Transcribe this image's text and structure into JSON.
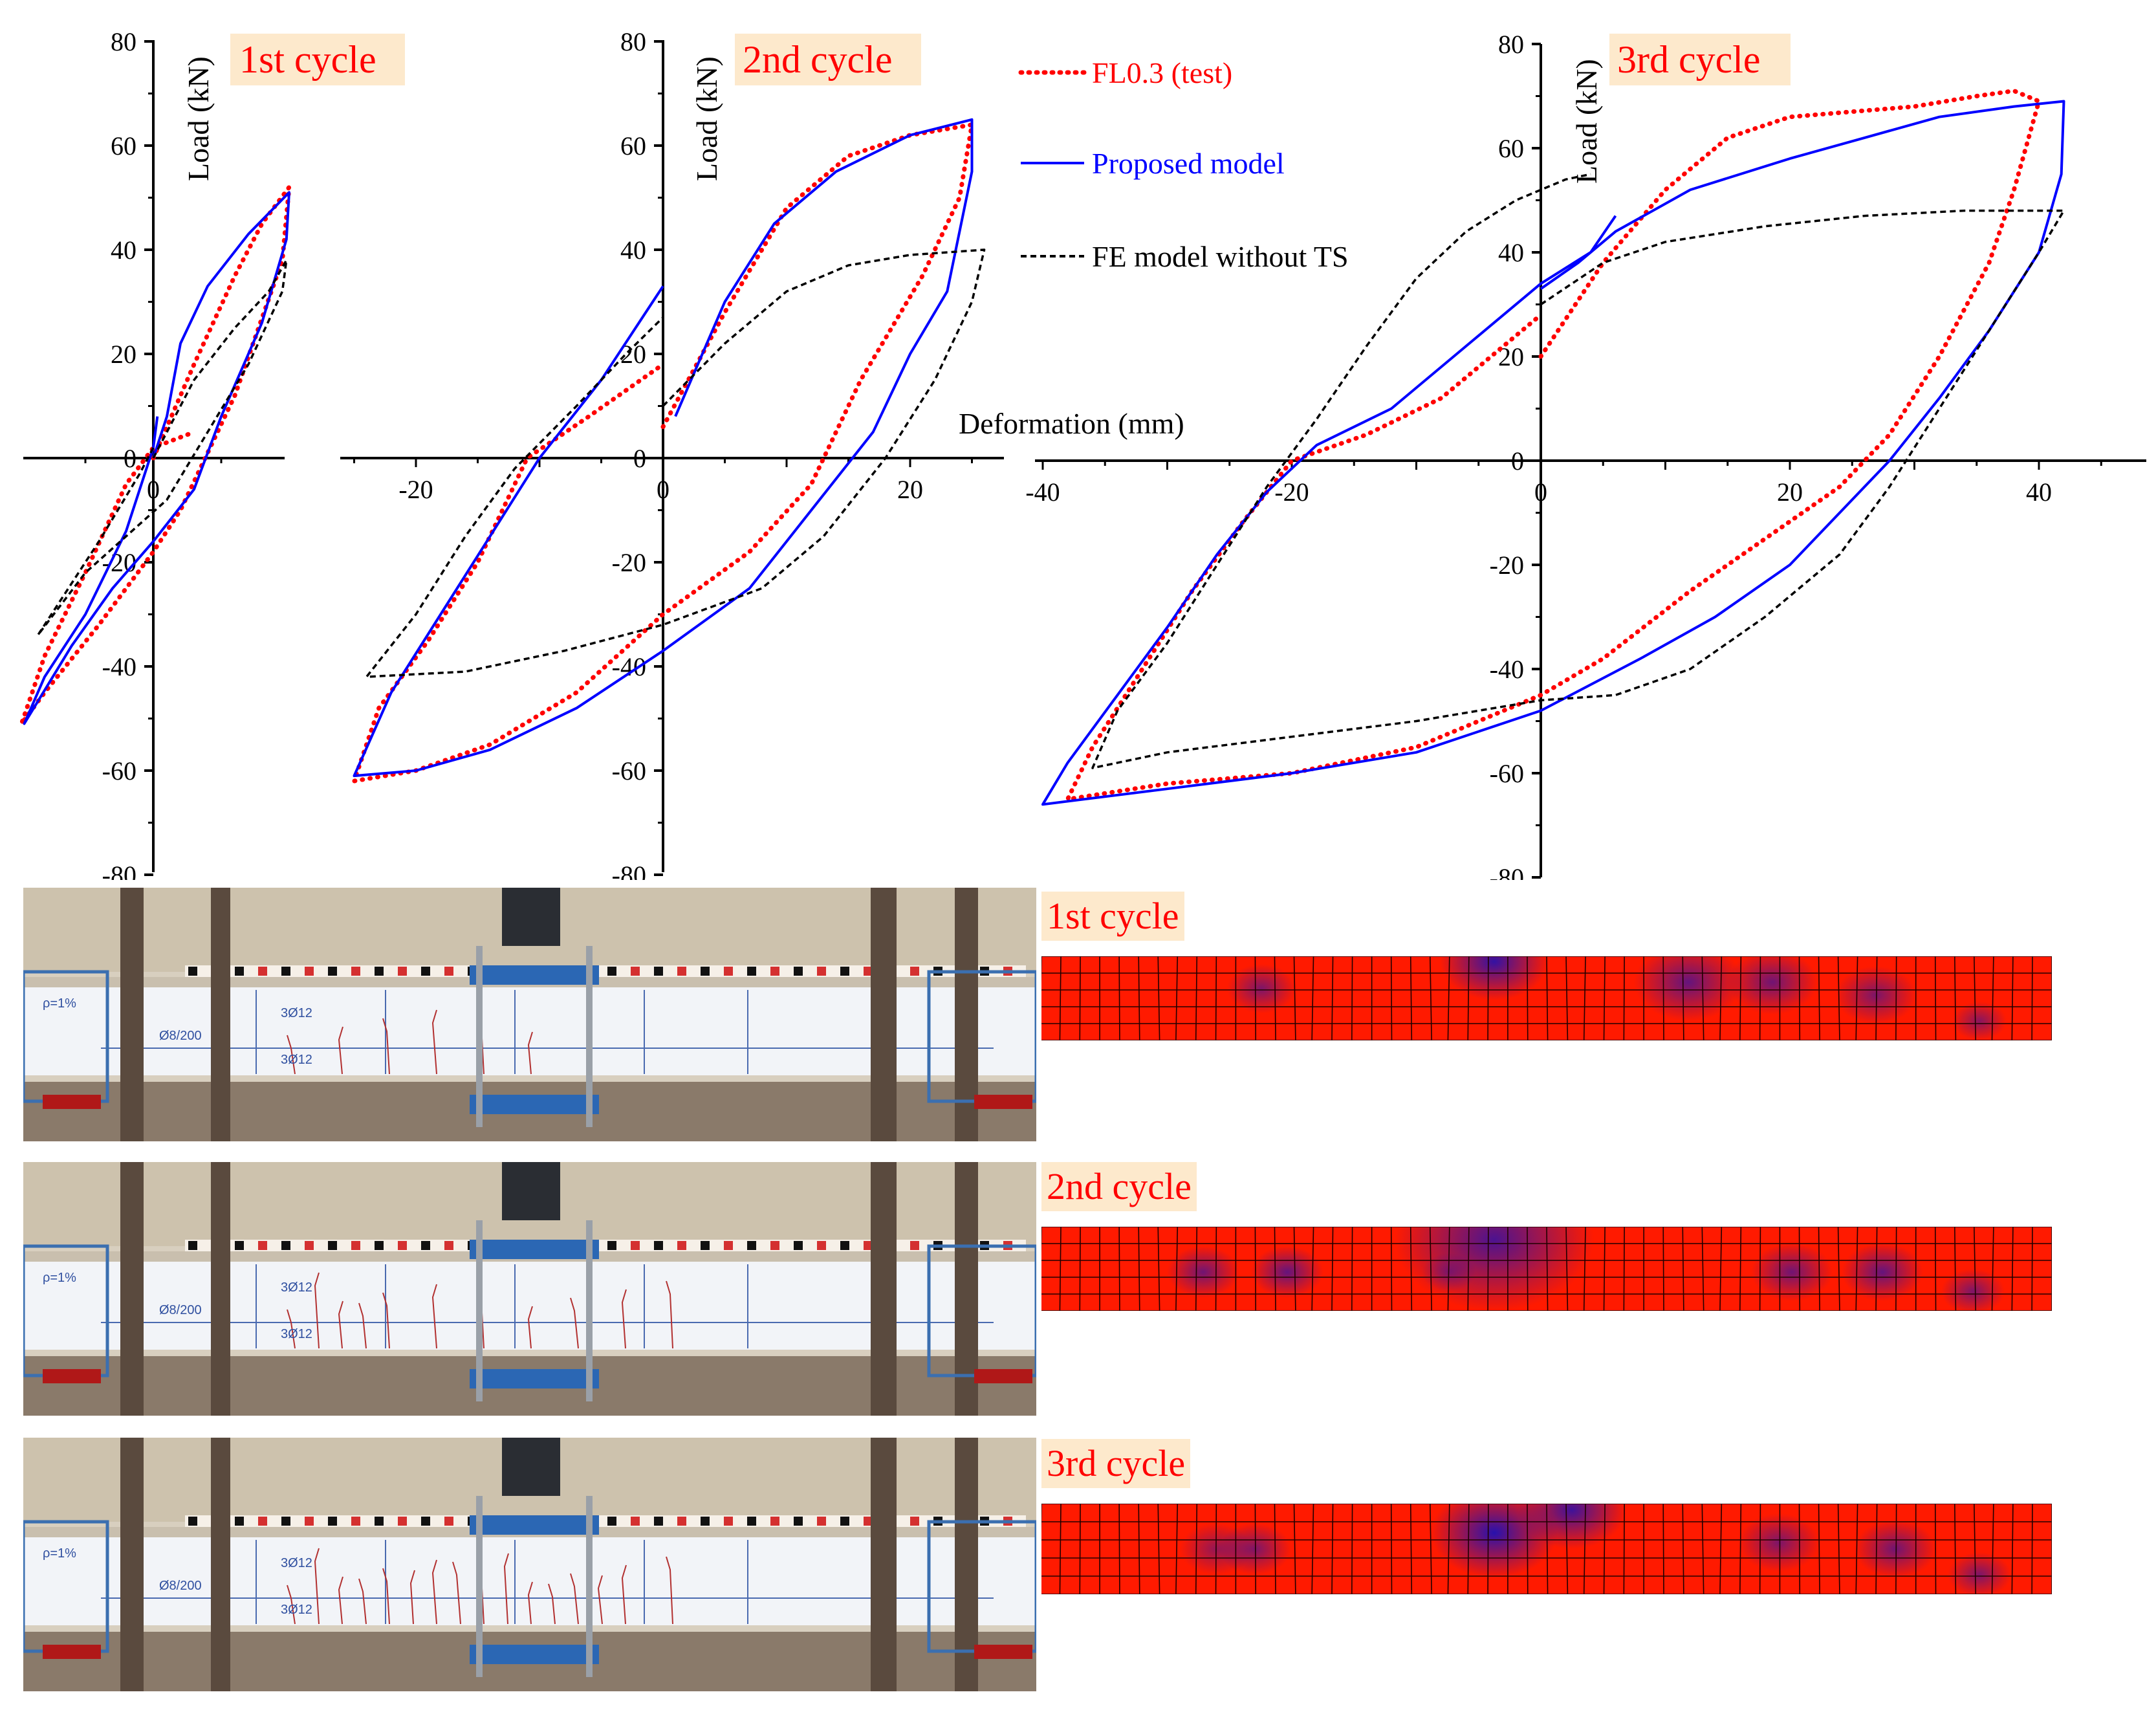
{
  "chart_data": [
    {
      "type": "line",
      "title": "1st cycle",
      "ylabel": "Load (kN)",
      "xlabel": "",
      "xlim": [
        -10.5,
        10.5
      ],
      "ylim": [
        -80,
        80
      ],
      "y_ticks": [
        -80,
        -60,
        -40,
        -20,
        0,
        20,
        40,
        60,
        80
      ],
      "x_ticks": [
        0
      ],
      "series": [
        {
          "name": "FL0.3 (test)",
          "color": "#ff0000",
          "style": "dotted",
          "points": [
            [
              0,
              0
            ],
            [
              3,
              18
            ],
            [
              6,
              35
            ],
            [
              8,
              45
            ],
            [
              10,
              52
            ],
            [
              9.5,
              38
            ],
            [
              6,
              12
            ],
            [
              2,
              -10
            ],
            [
              0,
              -18
            ],
            [
              -4,
              -32
            ],
            [
              -8,
              -45
            ],
            [
              -9.7,
              -51
            ],
            [
              -8,
              -38
            ],
            [
              -5,
              -22
            ],
            [
              -2,
              -5
            ],
            [
              0,
              2
            ],
            [
              3,
              5
            ]
          ]
        },
        {
          "name": "Proposed model",
          "color": "#0000ff",
          "style": "solid",
          "points": [
            [
              0,
              0
            ],
            [
              1,
              8
            ],
            [
              2,
              22
            ],
            [
              4,
              33
            ],
            [
              7,
              43
            ],
            [
              10,
              51
            ],
            [
              9.8,
              42
            ],
            [
              8,
              26
            ],
            [
              5,
              8
            ],
            [
              3,
              -6
            ],
            [
              0,
              -16
            ],
            [
              -3,
              -25
            ],
            [
              -6,
              -36
            ],
            [
              -9.5,
              -51
            ],
            [
              -8,
              -42
            ],
            [
              -5,
              -30
            ],
            [
              -2,
              -14
            ],
            [
              0,
              2
            ],
            [
              0.3,
              8
            ]
          ]
        },
        {
          "name": "FE model without TS",
          "color": "#000000",
          "style": "dashed",
          "points": [
            [
              0,
              0
            ],
            [
              3,
              15
            ],
            [
              6,
              25
            ],
            [
              8.5,
              32
            ],
            [
              9.8,
              38
            ],
            [
              9.5,
              32
            ],
            [
              7,
              18
            ],
            [
              4,
              5
            ],
            [
              1,
              -8
            ],
            [
              -2,
              -15
            ],
            [
              -5,
              -22
            ],
            [
              -8.5,
              -34
            ],
            [
              -7,
              -28
            ],
            [
              -4,
              -16
            ],
            [
              -1,
              -3
            ],
            [
              0,
              2
            ]
          ]
        }
      ]
    },
    {
      "type": "line",
      "title": "2nd cycle",
      "ylabel": "Load (kN)",
      "xlabel": "",
      "xlim": [
        -26,
        27
      ],
      "ylim": [
        -80,
        80
      ],
      "y_ticks": [
        -80,
        -60,
        -40,
        -20,
        0,
        20,
        40,
        60,
        80
      ],
      "x_ticks": [
        -20,
        0,
        20
      ],
      "series": [
        {
          "name": "FL0.3 (test)",
          "color": "#ff0000",
          "style": "dotted",
          "points": [
            [
              0,
              6
            ],
            [
              5,
              28
            ],
            [
              10,
              48
            ],
            [
              15,
              58
            ],
            [
              20,
              62
            ],
            [
              25,
              64
            ],
            [
              24,
              50
            ],
            [
              21,
              35
            ],
            [
              16,
              15
            ],
            [
              12,
              -5
            ],
            [
              7,
              -18
            ],
            [
              0,
              -30
            ],
            [
              -7,
              -45
            ],
            [
              -14,
              -55
            ],
            [
              -20,
              -60
            ],
            [
              -25,
              -62
            ],
            [
              -23,
              -48
            ],
            [
              -19,
              -35
            ],
            [
              -15,
              -20
            ],
            [
              -11,
              0
            ],
            [
              -6,
              8
            ],
            [
              0,
              18
            ]
          ]
        },
        {
          "name": "Proposed model",
          "color": "#0000ff",
          "style": "solid",
          "points": [
            [
              1,
              8
            ],
            [
              5,
              30
            ],
            [
              9,
              45
            ],
            [
              14,
              55
            ],
            [
              20,
              62
            ],
            [
              25,
              65
            ],
            [
              25,
              55
            ],
            [
              23,
              32
            ],
            [
              20,
              20
            ],
            [
              17,
              5
            ],
            [
              12,
              -10
            ],
            [
              7,
              -25
            ],
            [
              0,
              -37
            ],
            [
              -7,
              -48
            ],
            [
              -14,
              -56
            ],
            [
              -20,
              -60
            ],
            [
              -25,
              -61
            ],
            [
              -22,
              -45
            ],
            [
              -18,
              -30
            ],
            [
              -14,
              -15
            ],
            [
              -10,
              0
            ],
            [
              -5,
              15
            ],
            [
              0,
              33
            ]
          ]
        },
        {
          "name": "FE model without TS",
          "color": "#000000",
          "style": "dashed",
          "points": [
            [
              0,
              10
            ],
            [
              5,
              22
            ],
            [
              10,
              32
            ],
            [
              15,
              37
            ],
            [
              20,
              39
            ],
            [
              26,
              40
            ],
            [
              25,
              30
            ],
            [
              22,
              15
            ],
            [
              18,
              0
            ],
            [
              13,
              -15
            ],
            [
              8,
              -25
            ],
            [
              0,
              -32
            ],
            [
              -8,
              -37
            ],
            [
              -16,
              -41
            ],
            [
              -24,
              -42
            ],
            [
              -20,
              -30
            ],
            [
              -16,
              -15
            ],
            [
              -12,
              -2
            ],
            [
              -7,
              10
            ],
            [
              -3,
              20
            ],
            [
              0,
              27
            ]
          ]
        }
      ]
    },
    {
      "type": "line",
      "title": "3rd cycle",
      "ylabel": "Load (kN)",
      "xlabel": "Deformation (mm)",
      "xlim": [
        -40,
        48
      ],
      "ylim": [
        -80,
        80
      ],
      "y_ticks": [
        -80,
        -60,
        -40,
        -20,
        0,
        20,
        40,
        60,
        80
      ],
      "x_ticks": [
        -40,
        -20,
        0,
        20,
        40
      ],
      "series": [
        {
          "name": "FL0.3 (test)",
          "color": "#ff0000",
          "style": "dotted",
          "points": [
            [
              0,
              20
            ],
            [
              5,
              38
            ],
            [
              10,
              52
            ],
            [
              15,
              62
            ],
            [
              20,
              66
            ],
            [
              25,
              67
            ],
            [
              30,
              68
            ],
            [
              35,
              70
            ],
            [
              38,
              71
            ],
            [
              40,
              69
            ],
            [
              38,
              52
            ],
            [
              36,
              38
            ],
            [
              32,
              20
            ],
            [
              28,
              5
            ],
            [
              24,
              -5
            ],
            [
              18,
              -15
            ],
            [
              12,
              -25
            ],
            [
              5,
              -38
            ],
            [
              0,
              -45
            ],
            [
              -10,
              -55
            ],
            [
              -20,
              -60
            ],
            [
              -30,
              -62
            ],
            [
              -38,
              -65
            ],
            [
              -36,
              -55
            ],
            [
              -32,
              -40
            ],
            [
              -28,
              -25
            ],
            [
              -24,
              -12
            ],
            [
              -20,
              0
            ],
            [
              -14,
              5
            ],
            [
              -8,
              12
            ],
            [
              0,
              28
            ]
          ]
        },
        {
          "name": "Proposed model",
          "color": "#0000ff",
          "style": "solid",
          "points": [
            [
              0,
              33
            ],
            [
              3,
              38
            ],
            [
              6,
              44
            ],
            [
              12,
              52
            ],
            [
              20,
              58
            ],
            [
              26,
              62
            ],
            [
              32,
              66
            ],
            [
              38,
              68
            ],
            [
              42,
              69
            ],
            [
              41.8,
              55
            ],
            [
              40,
              40
            ],
            [
              36,
              25
            ],
            [
              32,
              12
            ],
            [
              28,
              0
            ],
            [
              24,
              -10
            ],
            [
              20,
              -20
            ],
            [
              14,
              -30
            ],
            [
              8,
              -38
            ],
            [
              0,
              -48
            ],
            [
              -10,
              -56
            ],
            [
              -20,
              -60
            ],
            [
              -30,
              -63
            ],
            [
              -40,
              -66
            ],
            [
              -38,
              -58
            ],
            [
              -34,
              -45
            ],
            [
              -30,
              -32
            ],
            [
              -26,
              -18
            ],
            [
              -22,
              -6
            ],
            [
              -18,
              3
            ],
            [
              -12,
              10
            ],
            [
              -6,
              22
            ],
            [
              0,
              34
            ],
            [
              4,
              40
            ],
            [
              6,
              47
            ]
          ]
        },
        {
          "name": "FE model without TS",
          "color": "#000000",
          "style": "dashed",
          "points": [
            [
              0,
              30
            ],
            [
              5,
              38
            ],
            [
              10,
              42
            ],
            [
              18,
              45
            ],
            [
              26,
              47
            ],
            [
              34,
              48
            ],
            [
              42,
              48
            ],
            [
              40,
              40
            ],
            [
              36,
              25
            ],
            [
              32,
              10
            ],
            [
              28,
              -5
            ],
            [
              24,
              -18
            ],
            [
              18,
              -30
            ],
            [
              12,
              -40
            ],
            [
              6,
              -45
            ],
            [
              0,
              -46
            ],
            [
              -10,
              -50
            ],
            [
              -20,
              -53
            ],
            [
              -30,
              -56
            ],
            [
              -36,
              -59
            ],
            [
              -34,
              -48
            ],
            [
              -30,
              -35
            ],
            [
              -26,
              -20
            ],
            [
              -22,
              -5
            ],
            [
              -18,
              8
            ],
            [
              -14,
              22
            ],
            [
              -10,
              35
            ],
            [
              -6,
              44
            ],
            [
              -2,
              50
            ],
            [
              2,
              54
            ],
            [
              4,
              55
            ]
          ]
        }
      ]
    }
  ],
  "legend": [
    {
      "label": "FL0.3 (test)",
      "color": "#ff0000",
      "style": "dotted"
    },
    {
      "label": "Proposed model",
      "color": "#0000ff",
      "style": "solid"
    },
    {
      "label": "FE model without TS",
      "color": "#000000",
      "style": "dashed"
    }
  ],
  "photo_labels": {
    "rebar_1": "3Ø12",
    "stirrups": "Ø8/200",
    "rebar_2": "3Ø12",
    "side_note": "ρ=1%"
  },
  "fe_panels": [
    {
      "title": "1st cycle"
    },
    {
      "title": "2nd cycle"
    },
    {
      "title": "3rd cycle"
    }
  ],
  "colors": {
    "test": "#ff0000",
    "model": "#0000ff",
    "fe": "#000000",
    "title_bg": "#fde9cc",
    "contour_high": "#ff1a00",
    "contour_low": "#1010c0"
  }
}
